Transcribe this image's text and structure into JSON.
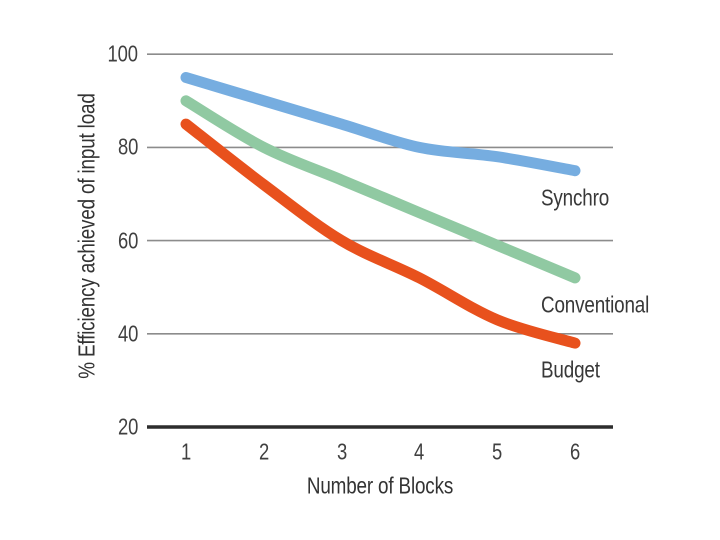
{
  "chart_data": {
    "type": "line",
    "title": "",
    "xlabel": "Number of Blocks",
    "ylabel": "% Efficiency achieved of input load",
    "x": [
      1,
      2,
      3,
      4,
      5,
      6
    ],
    "xticklabels": [
      "1",
      "2",
      "3",
      "4",
      "5",
      "6"
    ],
    "yticks": [
      20,
      40,
      60,
      80,
      100
    ],
    "ylim": [
      20,
      100
    ],
    "xlim": [
      0.5,
      6.5
    ],
    "grid": true,
    "legend_position": "inline-labels-below-line-ends",
    "series": [
      {
        "name": "Synchro",
        "color": "#76ade0",
        "values": [
          95,
          90,
          85,
          80,
          78,
          75
        ]
      },
      {
        "name": "Conventional",
        "color": "#90c9a2",
        "values": [
          90,
          80,
          73,
          66,
          59,
          52
        ]
      },
      {
        "name": "Budget",
        "color": "#e8511d",
        "values": [
          85,
          72,
          60,
          52,
          43,
          38
        ]
      }
    ]
  },
  "colors": {
    "background": "#ffffff",
    "grid": "#8c8c8c",
    "axis": "#2d2d2d",
    "text": "#404040"
  }
}
